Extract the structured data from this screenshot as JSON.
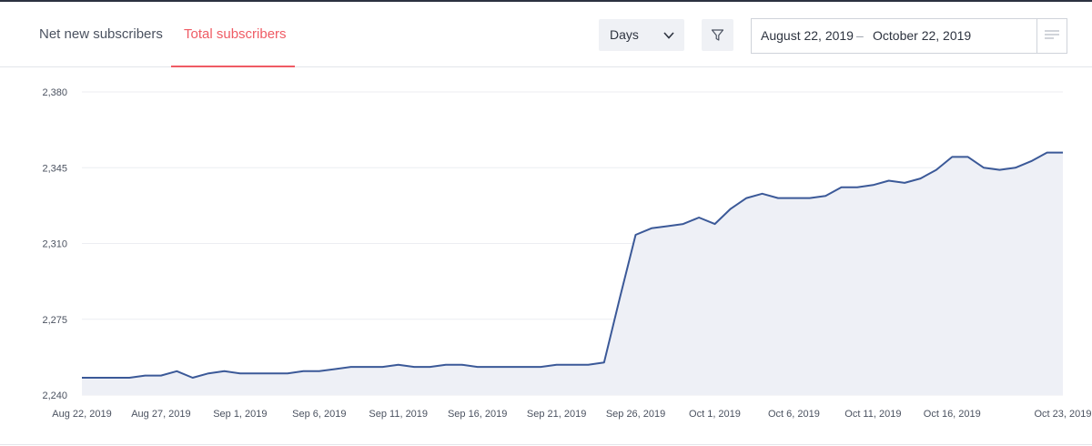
{
  "tabs": [
    {
      "label": "Net new subscribers"
    },
    {
      "label": "Total subscribers"
    }
  ],
  "granularity": {
    "value": "Days"
  },
  "date_range": {
    "start": "August 22, 2019",
    "separator": "–",
    "end": "October 22, 2019"
  },
  "colors": {
    "accent": "#ef5b64",
    "line": "#3b5998",
    "area": "#eef0f6"
  },
  "chart_data": {
    "type": "area",
    "title": "",
    "xlabel": "",
    "ylabel": "",
    "ylim": [
      2240,
      2380
    ],
    "yticks": [
      "2,380",
      "2,345",
      "2,310",
      "2,275",
      "2,240"
    ],
    "xticks": [
      "Aug 22, 2019",
      "Aug 27, 2019",
      "Sep 1, 2019",
      "Sep 6, 2019",
      "Sep 11, 2019",
      "Sep 16, 2019",
      "Sep 21, 2019",
      "Sep 26, 2019",
      "Oct 1, 2019",
      "Oct 6, 2019",
      "Oct 11, 2019",
      "Oct 16, 2019",
      "Oct 23, 2019"
    ],
    "grid": true,
    "legend": "none",
    "series": [
      {
        "x": [
          "2019-08-22",
          "2019-08-23",
          "2019-08-24",
          "2019-08-25",
          "2019-08-26",
          "2019-08-27",
          "2019-08-28",
          "2019-08-29",
          "2019-08-30",
          "2019-08-31",
          "2019-09-01",
          "2019-09-02",
          "2019-09-03",
          "2019-09-04",
          "2019-09-05",
          "2019-09-06",
          "2019-09-07",
          "2019-09-08",
          "2019-09-09",
          "2019-09-10",
          "2019-09-11",
          "2019-09-12",
          "2019-09-13",
          "2019-09-14",
          "2019-09-15",
          "2019-09-16",
          "2019-09-17",
          "2019-09-18",
          "2019-09-19",
          "2019-09-20",
          "2019-09-21",
          "2019-09-22",
          "2019-09-23",
          "2019-09-24",
          "2019-09-25",
          "2019-09-26",
          "2019-09-27",
          "2019-09-28",
          "2019-09-29",
          "2019-09-30",
          "2019-10-01",
          "2019-10-02",
          "2019-10-03",
          "2019-10-04",
          "2019-10-05",
          "2019-10-06",
          "2019-10-07",
          "2019-10-08",
          "2019-10-09",
          "2019-10-10",
          "2019-10-11",
          "2019-10-12",
          "2019-10-13",
          "2019-10-14",
          "2019-10-15",
          "2019-10-16",
          "2019-10-17",
          "2019-10-18",
          "2019-10-19",
          "2019-10-20",
          "2019-10-21",
          "2019-10-22",
          "2019-10-23"
        ],
        "values": [
          2248,
          2248,
          2248,
          2248,
          2249,
          2249,
          2251,
          2248,
          2250,
          2251,
          2250,
          2250,
          2250,
          2250,
          2251,
          2251,
          2252,
          2253,
          2253,
          2253,
          2254,
          2253,
          2253,
          2254,
          2254,
          2253,
          2253,
          2253,
          2253,
          2253,
          2254,
          2254,
          2254,
          2255,
          2285,
          2314,
          2317,
          2318,
          2319,
          2322,
          2319,
          2326,
          2331,
          2333,
          2331,
          2331,
          2331,
          2332,
          2336,
          2336,
          2337,
          2339,
          2338,
          2340,
          2344,
          2350,
          2350,
          2345,
          2344,
          2345,
          2348,
          2352,
          2352
        ]
      }
    ]
  }
}
